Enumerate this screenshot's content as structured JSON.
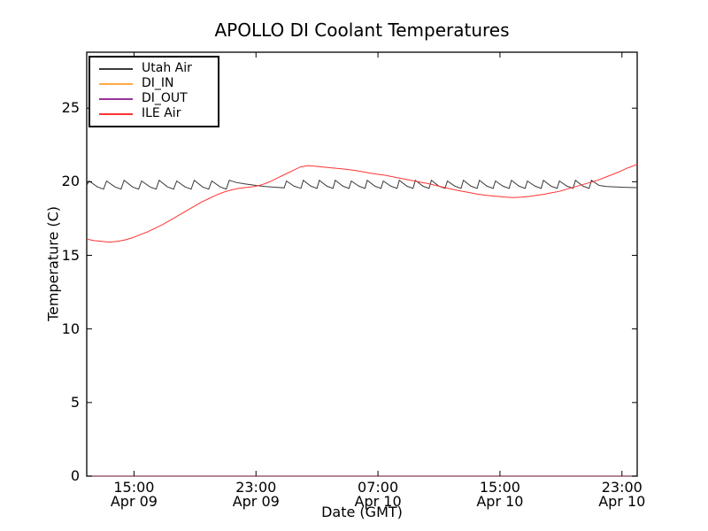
{
  "figure": {
    "title": "APOLLO DI Coolant Temperatures",
    "xlabel": "Date (GMT)",
    "ylabel": "Temperature (C)"
  },
  "chart_data": {
    "type": "line",
    "title": "APOLLO DI Coolant Temperatures",
    "xlabel": "Date (GMT)",
    "ylabel": "Temperature (C)",
    "x_unit": "hours since Apr 09 00:00 GMT",
    "xlim": [
      11.9,
      48.0
    ],
    "ylim": [
      0,
      28.8
    ],
    "grid": false,
    "yticks": [
      0,
      5,
      10,
      15,
      20,
      25
    ],
    "xticks": [
      {
        "hour": 15,
        "time": "15:00",
        "date": "Apr 09"
      },
      {
        "hour": 23,
        "time": "23:00",
        "date": "Apr 09"
      },
      {
        "hour": 31,
        "time": "07:00",
        "date": "Apr 10"
      },
      {
        "hour": 39,
        "time": "15:00",
        "date": "Apr 10"
      },
      {
        "hour": 47,
        "time": "23:00",
        "date": "Apr 10"
      }
    ],
    "legend": {
      "position": "upper-left",
      "entries": [
        "Utah Air",
        "DI_IN",
        "DI_OUT",
        "ILE Air"
      ]
    },
    "series": [
      {
        "name": "Utah Air",
        "color": "#3a3a3a",
        "opacity": 1,
        "points": [
          [
            11.9,
            19.75
          ],
          [
            12.05,
            20.05
          ],
          [
            12.6,
            19.65
          ],
          [
            13.0,
            19.5
          ],
          [
            13.2,
            20.05
          ],
          [
            13.75,
            19.65
          ],
          [
            14.15,
            19.5
          ],
          [
            14.35,
            20.1
          ],
          [
            14.9,
            19.65
          ],
          [
            15.3,
            19.5
          ],
          [
            15.5,
            20.05
          ],
          [
            16.05,
            19.65
          ],
          [
            16.45,
            19.5
          ],
          [
            16.65,
            20.1
          ],
          [
            17.2,
            19.65
          ],
          [
            17.6,
            19.5
          ],
          [
            17.8,
            20.05
          ],
          [
            18.35,
            19.65
          ],
          [
            18.75,
            19.5
          ],
          [
            18.95,
            20.1
          ],
          [
            19.5,
            19.65
          ],
          [
            19.9,
            19.5
          ],
          [
            20.1,
            20.05
          ],
          [
            20.65,
            19.65
          ],
          [
            21.05,
            19.5
          ],
          [
            21.25,
            20.1
          ],
          [
            21.7,
            19.95
          ],
          [
            22.3,
            19.85
          ],
          [
            23.0,
            19.75
          ],
          [
            23.6,
            19.68
          ],
          [
            24.2,
            19.63
          ],
          [
            24.85,
            19.58
          ],
          [
            25.0,
            20.05
          ],
          [
            25.5,
            19.7
          ],
          [
            25.95,
            19.55
          ],
          [
            26.1,
            20.1
          ],
          [
            26.6,
            19.7
          ],
          [
            27.0,
            19.55
          ],
          [
            27.15,
            20.1
          ],
          [
            27.65,
            19.7
          ],
          [
            28.05,
            19.55
          ],
          [
            28.2,
            20.1
          ],
          [
            28.7,
            19.7
          ],
          [
            29.1,
            19.55
          ],
          [
            29.25,
            20.05
          ],
          [
            29.75,
            19.7
          ],
          [
            30.15,
            19.55
          ],
          [
            30.3,
            20.1
          ],
          [
            30.8,
            19.7
          ],
          [
            31.2,
            19.55
          ],
          [
            31.35,
            20.05
          ],
          [
            31.85,
            19.7
          ],
          [
            32.25,
            19.55
          ],
          [
            32.4,
            20.1
          ],
          [
            32.9,
            19.7
          ],
          [
            33.3,
            19.55
          ],
          [
            33.45,
            20.1
          ],
          [
            33.95,
            19.7
          ],
          [
            34.35,
            19.55
          ],
          [
            34.5,
            20.1
          ],
          [
            35.0,
            19.7
          ],
          [
            35.4,
            19.55
          ],
          [
            35.55,
            20.05
          ],
          [
            36.05,
            19.7
          ],
          [
            36.45,
            19.55
          ],
          [
            36.6,
            20.1
          ],
          [
            37.1,
            19.7
          ],
          [
            37.5,
            19.55
          ],
          [
            37.65,
            20.1
          ],
          [
            38.15,
            19.7
          ],
          [
            38.55,
            19.55
          ],
          [
            38.7,
            20.05
          ],
          [
            39.2,
            19.7
          ],
          [
            39.6,
            19.55
          ],
          [
            39.75,
            20.1
          ],
          [
            40.25,
            19.7
          ],
          [
            40.65,
            19.55
          ],
          [
            40.8,
            20.05
          ],
          [
            41.3,
            19.7
          ],
          [
            41.7,
            19.55
          ],
          [
            41.85,
            20.1
          ],
          [
            42.35,
            19.7
          ],
          [
            42.75,
            19.55
          ],
          [
            42.9,
            20.05
          ],
          [
            43.4,
            19.7
          ],
          [
            43.8,
            19.55
          ],
          [
            43.95,
            20.1
          ],
          [
            44.45,
            19.7
          ],
          [
            44.85,
            19.55
          ],
          [
            45.0,
            20.1
          ],
          [
            45.5,
            19.75
          ],
          [
            46.0,
            19.68
          ],
          [
            46.6,
            19.65
          ],
          [
            47.3,
            19.62
          ],
          [
            48.0,
            19.6
          ]
        ]
      },
      {
        "name": "DI_IN",
        "color": "#ffaa44",
        "opacity": 0.9,
        "points": [
          [
            11.9,
            0
          ],
          [
            48.0,
            0
          ]
        ]
      },
      {
        "name": "DI_OUT",
        "color": "#993399",
        "opacity": 0.65,
        "points": [
          [
            11.9,
            0
          ],
          [
            48.0,
            0
          ]
        ]
      },
      {
        "name": "ILE Air",
        "color": "#ff3333",
        "opacity": 1,
        "points": [
          [
            11.9,
            16.1
          ],
          [
            12.4,
            16.0
          ],
          [
            12.9,
            15.95
          ],
          [
            13.4,
            15.9
          ],
          [
            13.9,
            15.95
          ],
          [
            14.4,
            16.05
          ],
          [
            14.9,
            16.2
          ],
          [
            15.4,
            16.4
          ],
          [
            15.9,
            16.6
          ],
          [
            16.4,
            16.85
          ],
          [
            16.9,
            17.1
          ],
          [
            17.4,
            17.4
          ],
          [
            17.9,
            17.7
          ],
          [
            18.4,
            18.0
          ],
          [
            18.9,
            18.3
          ],
          [
            19.4,
            18.6
          ],
          [
            19.9,
            18.85
          ],
          [
            20.4,
            19.1
          ],
          [
            20.9,
            19.3
          ],
          [
            21.4,
            19.45
          ],
          [
            21.9,
            19.55
          ],
          [
            22.4,
            19.62
          ],
          [
            22.9,
            19.68
          ],
          [
            23.4,
            19.8
          ],
          [
            23.9,
            20.0
          ],
          [
            24.4,
            20.25
          ],
          [
            24.9,
            20.5
          ],
          [
            25.4,
            20.75
          ],
          [
            25.9,
            21.0
          ],
          [
            26.4,
            21.1
          ],
          [
            26.9,
            21.05
          ],
          [
            27.4,
            21.0
          ],
          [
            27.9,
            20.95
          ],
          [
            28.4,
            20.9
          ],
          [
            28.9,
            20.85
          ],
          [
            29.4,
            20.78
          ],
          [
            29.9,
            20.7
          ],
          [
            30.4,
            20.6
          ],
          [
            30.9,
            20.52
          ],
          [
            31.4,
            20.45
          ],
          [
            31.9,
            20.35
          ],
          [
            32.4,
            20.25
          ],
          [
            32.9,
            20.15
          ],
          [
            33.4,
            20.05
          ],
          [
            33.9,
            19.95
          ],
          [
            34.4,
            19.85
          ],
          [
            34.9,
            19.72
          ],
          [
            35.4,
            19.6
          ],
          [
            35.9,
            19.48
          ],
          [
            36.4,
            19.38
          ],
          [
            36.9,
            19.28
          ],
          [
            37.4,
            19.18
          ],
          [
            37.9,
            19.1
          ],
          [
            38.4,
            19.05
          ],
          [
            38.9,
            19.0
          ],
          [
            39.4,
            18.95
          ],
          [
            39.9,
            18.92
          ],
          [
            40.4,
            18.95
          ],
          [
            40.9,
            19.0
          ],
          [
            41.4,
            19.08
          ],
          [
            41.9,
            19.15
          ],
          [
            42.4,
            19.25
          ],
          [
            42.9,
            19.35
          ],
          [
            43.4,
            19.5
          ],
          [
            43.9,
            19.65
          ],
          [
            44.4,
            19.8
          ],
          [
            44.9,
            19.95
          ],
          [
            45.4,
            20.1
          ],
          [
            45.9,
            20.3
          ],
          [
            46.4,
            20.5
          ],
          [
            46.9,
            20.72
          ],
          [
            47.4,
            20.95
          ],
          [
            47.8,
            21.1
          ],
          [
            48.0,
            21.2
          ]
        ]
      }
    ]
  }
}
